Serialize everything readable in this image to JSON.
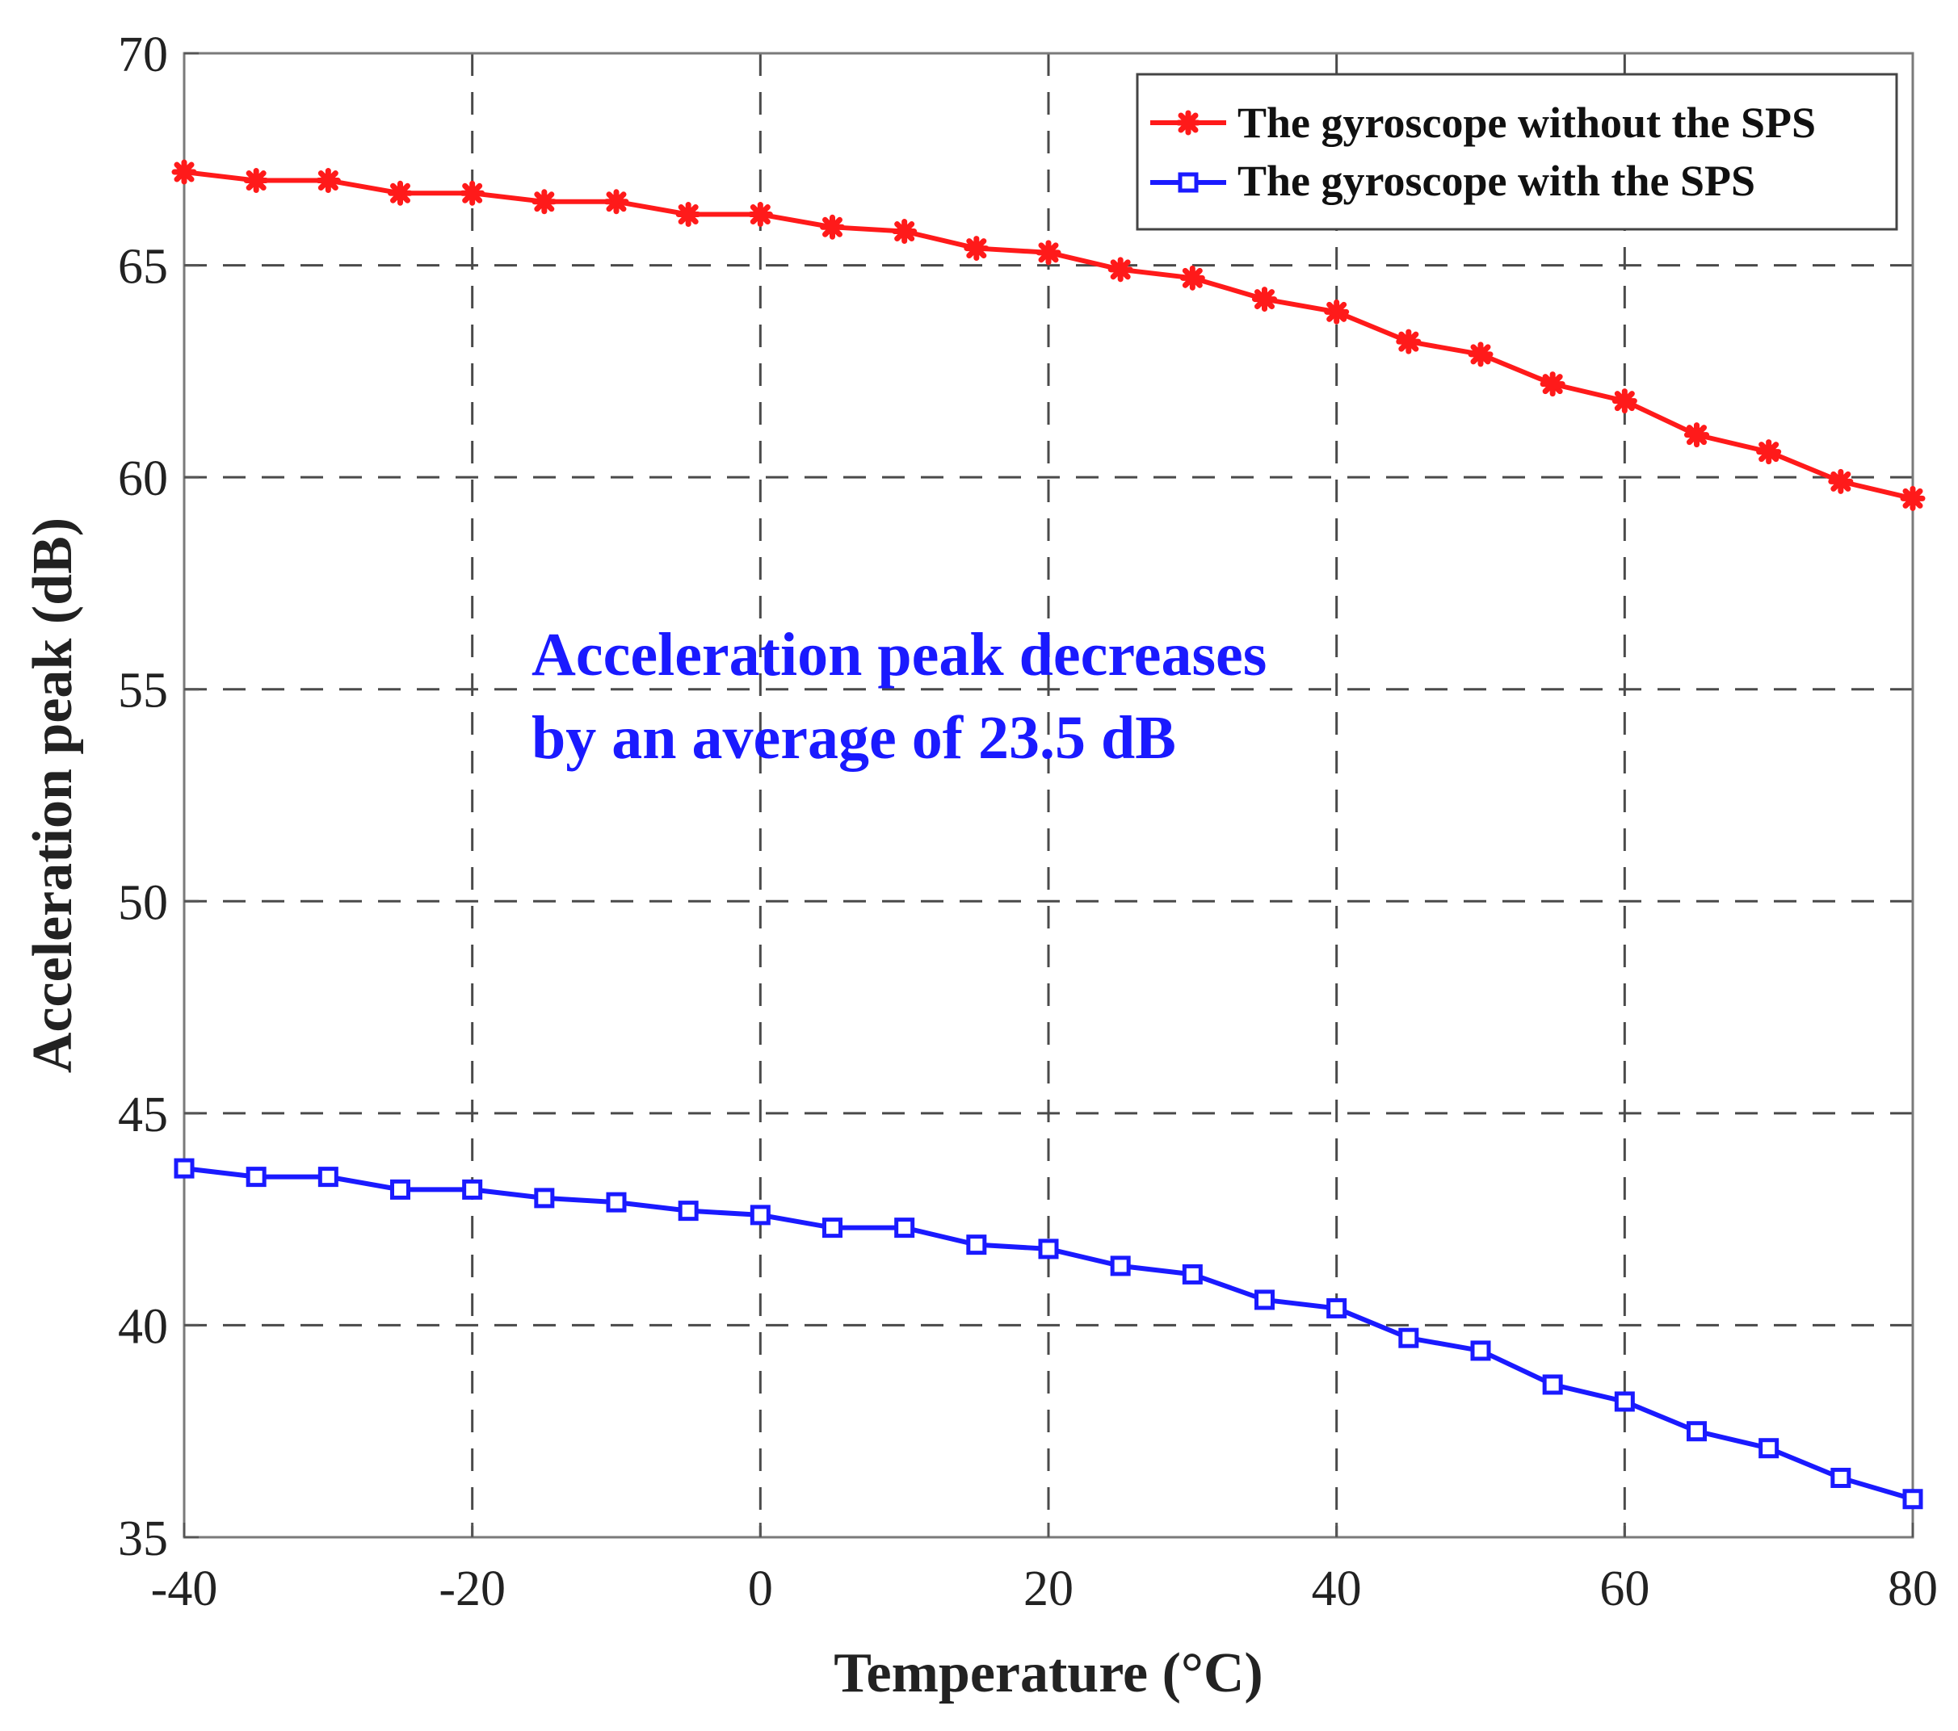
{
  "chart_data": {
    "type": "line",
    "title": "",
    "xlabel": "Temperature (°C)",
    "ylabel": "Acceleration peak (dB)",
    "xlim": [
      -40,
      80
    ],
    "ylim": [
      35,
      70
    ],
    "grid": true,
    "legend_position": "top-right",
    "x_ticks": [
      -40,
      -20,
      0,
      20,
      40,
      60,
      80
    ],
    "y_ticks": [
      35,
      40,
      45,
      50,
      55,
      60,
      65,
      70
    ],
    "x_tick_labels": [
      "-40",
      "-20",
      "0",
      "20",
      "40",
      "60",
      "80"
    ],
    "y_tick_labels": [
      "35",
      "40",
      "45",
      "50",
      "55",
      "60",
      "65",
      "70"
    ],
    "x": [
      -40,
      -35,
      -30,
      -25,
      -20,
      -15,
      -10,
      -5,
      0,
      5,
      10,
      15,
      20,
      25,
      30,
      35,
      40,
      45,
      50,
      55,
      60,
      65,
      70,
      75,
      80
    ],
    "series": [
      {
        "name": "The gyroscope without the SPS",
        "color": "#ff1a1a",
        "marker": "asterisk",
        "values": [
          67.2,
          67.0,
          67.0,
          66.7,
          66.7,
          66.5,
          66.5,
          66.2,
          66.2,
          65.9,
          65.8,
          65.4,
          65.3,
          64.9,
          64.7,
          64.2,
          63.9,
          63.2,
          62.9,
          62.2,
          61.8,
          61.0,
          60.6,
          59.9,
          59.5
        ]
      },
      {
        "name": "The gyroscope with the SPS",
        "color": "#1a1aff",
        "marker": "square",
        "values": [
          43.7,
          43.5,
          43.5,
          43.2,
          43.2,
          43.0,
          42.9,
          42.7,
          42.6,
          42.3,
          42.3,
          41.9,
          41.8,
          41.4,
          41.2,
          40.6,
          40.4,
          39.7,
          39.4,
          38.6,
          38.2,
          37.5,
          37.1,
          36.4,
          35.9
        ]
      }
    ],
    "annotation": {
      "lines": [
        "Acceleration peak decreases",
        "by an average of 23.5 dB"
      ],
      "color": "#1a1aff"
    }
  }
}
